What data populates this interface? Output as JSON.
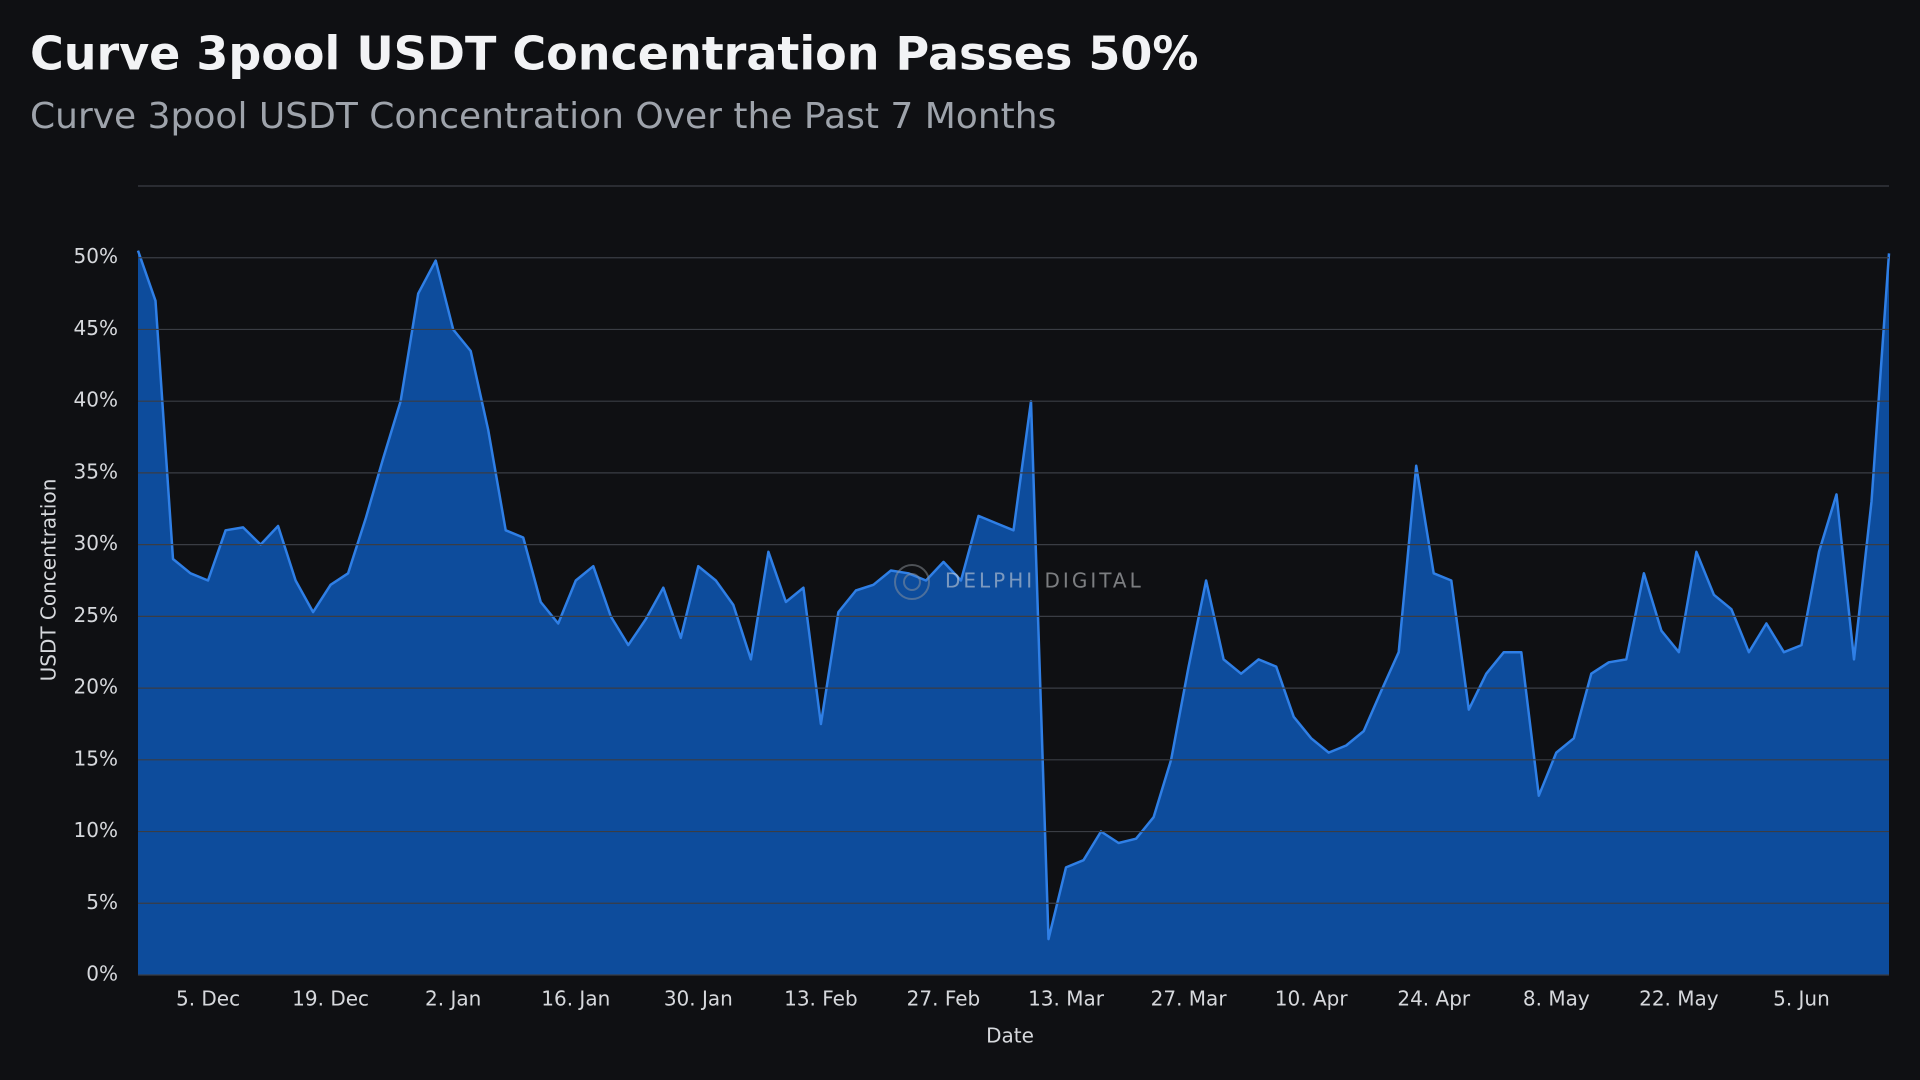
{
  "chart_data": {
    "type": "area",
    "title": "Curve 3pool USDT Concentration Passes 50%",
    "subtitle": "Curve 3pool USDT Concentration Over the Past 7 Months",
    "x_label": "Date",
    "y_label": "USDT Concentration",
    "watermark": "DELPHI DIGITAL",
    "color": "#2f7fe6",
    "fill": "#0d4c9c",
    "grid": true,
    "categories": [
      null,
      null,
      null,
      null,
      "5. Dec",
      null,
      null,
      null,
      null,
      null,
      null,
      "19. Dec",
      null,
      null,
      null,
      null,
      null,
      null,
      "2. Jan",
      null,
      null,
      null,
      null,
      null,
      null,
      "16. Jan",
      null,
      null,
      null,
      null,
      null,
      null,
      "30. Jan",
      null,
      null,
      null,
      null,
      null,
      null,
      "13. Feb",
      null,
      null,
      null,
      null,
      null,
      null,
      "27. Feb",
      null,
      null,
      null,
      null,
      null,
      null,
      "13. Mar",
      null,
      null,
      null,
      null,
      null,
      null,
      "27. Mar",
      null,
      null,
      null,
      null,
      null,
      null,
      "10. Apr",
      null,
      null,
      null,
      null,
      null,
      null,
      "24. Apr",
      null,
      null,
      null,
      null,
      null,
      null,
      "8. May",
      null,
      null,
      null,
      null,
      null,
      null,
      "22. May",
      null,
      null,
      null,
      null,
      null,
      null,
      "5. Jun",
      null,
      null,
      null,
      null,
      null
    ],
    "values": [
      50.5,
      47,
      29,
      28,
      27.5,
      31,
      31.2,
      30,
      31.3,
      27.5,
      25.3,
      27.2,
      28,
      31.8,
      36,
      40,
      47.5,
      49.8,
      45,
      43.5,
      38,
      31,
      30.5,
      26,
      24.5,
      27.5,
      28.5,
      25,
      23,
      24.8,
      27,
      23.5,
      28.5,
      27.5,
      25.8,
      22,
      29.5,
      26,
      27,
      17.5,
      25.3,
      26.8,
      27.2,
      28.2,
      28,
      27.5,
      28.8,
      27.5,
      32,
      31.5,
      31,
      40,
      2.5,
      7.5,
      8,
      10,
      9.2,
      9.5,
      11,
      15,
      21.5,
      27.5,
      22,
      21,
      22,
      21.5,
      18,
      16.5,
      15.5,
      16,
      17,
      19.8,
      22.5,
      35.5,
      28,
      27.5,
      18.5,
      21,
      22.5,
      22.5,
      12.5,
      15.5,
      16.5,
      21,
      21.8,
      22,
      28,
      24,
      22.5,
      29.5,
      26.5,
      25.5,
      22.5,
      24.5,
      22.5,
      23,
      29.5,
      33.5,
      22,
      33,
      50.3
    ],
    "ylim": [
      0,
      55
    ],
    "yticks": [
      {
        "value": 0,
        "label": "0%"
      },
      {
        "value": 5,
        "label": "5%"
      },
      {
        "value": 10,
        "label": "10%"
      },
      {
        "value": 15,
        "label": "15%"
      },
      {
        "value": 20,
        "label": "20%"
      },
      {
        "value": 25,
        "label": "25%"
      },
      {
        "value": 30,
        "label": "30%"
      },
      {
        "value": 35,
        "label": "35%"
      },
      {
        "value": 40,
        "label": "40%"
      },
      {
        "value": 45,
        "label": "45%"
      },
      {
        "value": 50,
        "label": "50%"
      }
    ]
  }
}
